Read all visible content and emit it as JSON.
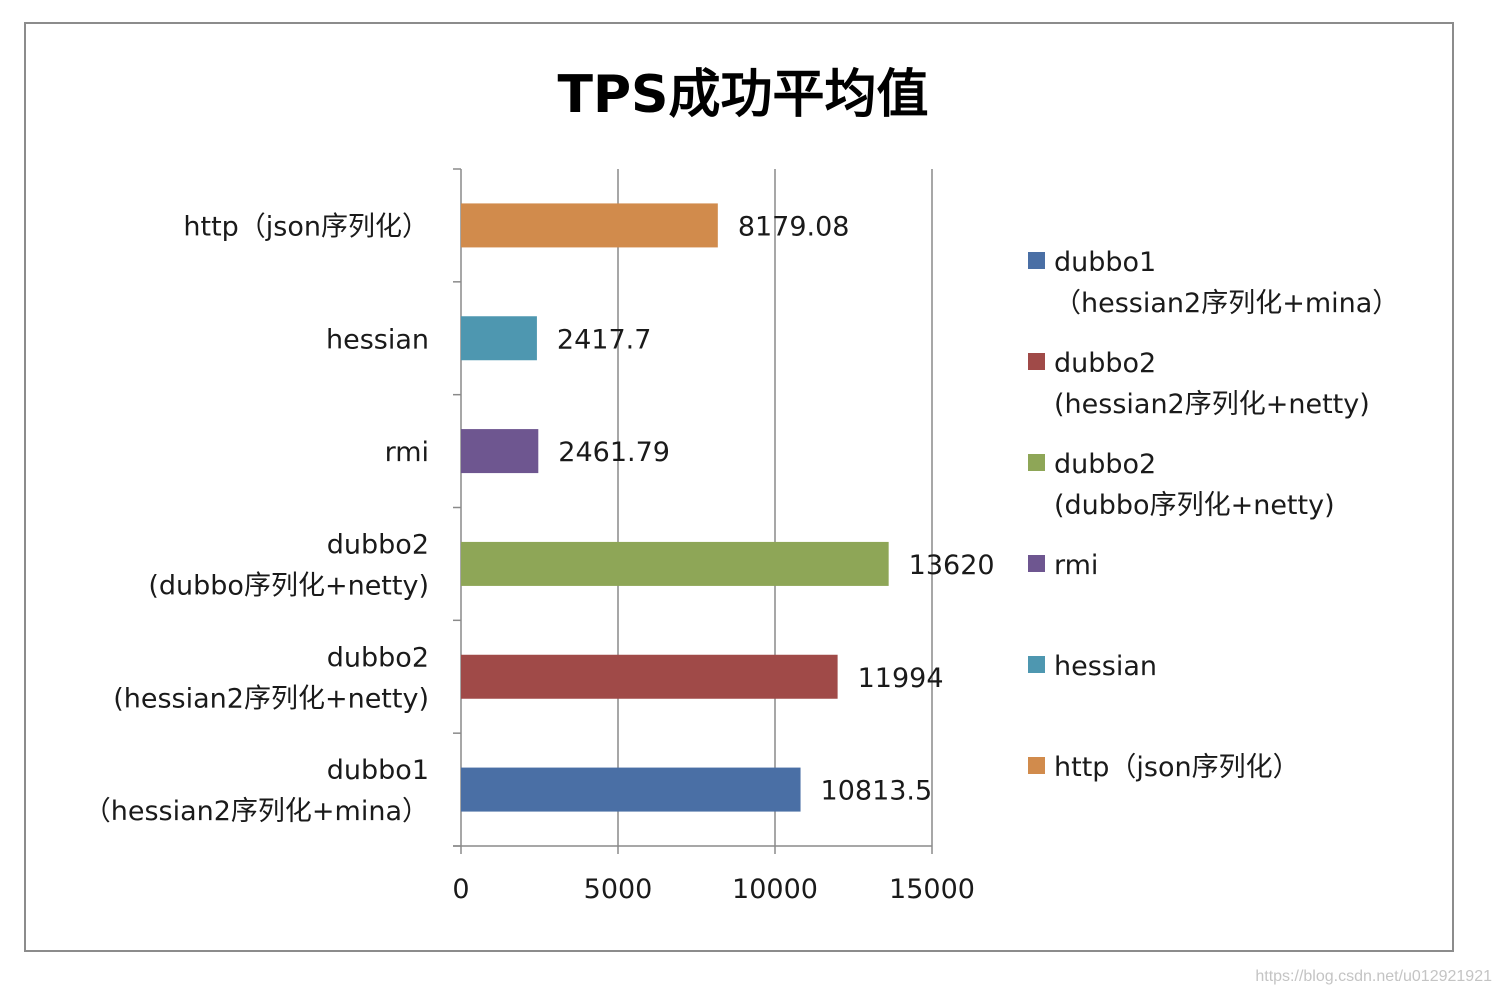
{
  "chart_data": {
    "type": "bar",
    "orientation": "horizontal",
    "title": "TPS成功平均值",
    "xlabel": "",
    "ylabel": "",
    "xlim": [
      0,
      15000
    ],
    "xticks": [
      0,
      5000,
      10000,
      15000
    ],
    "grid": "vertical",
    "legend_position": "right",
    "series": [
      {
        "name": "dubbo1\n（hessian2序列化+mina）",
        "category": "dubbo1\n（hessian2序列化+mina）",
        "value": 10813.5,
        "label": "10813.5",
        "color": "#4a6fa5"
      },
      {
        "name": "dubbo2\n(hessian2序列化+netty)",
        "category": "dubbo2\n(hessian2序列化+netty)",
        "value": 11994,
        "label": "11994",
        "color": "#a04a48"
      },
      {
        "name": "dubbo2\n(dubbo序列化+netty)",
        "category": "dubbo2\n(dubbo序列化+netty)",
        "value": 13620,
        "label": "13620",
        "color": "#8ea657"
      },
      {
        "name": "rmi",
        "category": "rmi",
        "value": 2461.79,
        "label": "2461.79",
        "color": "#6e5690"
      },
      {
        "name": "hessian",
        "category": "hessian",
        "value": 2417.7,
        "label": "2417.7",
        "color": "#4e97b0"
      },
      {
        "name": "http（json序列化）",
        "category": "http（json序列化）",
        "value": 8179.08,
        "label": "8179.08",
        "color": "#d18b4c"
      }
    ]
  },
  "watermark": "https://blog.csdn.net/u012921921"
}
